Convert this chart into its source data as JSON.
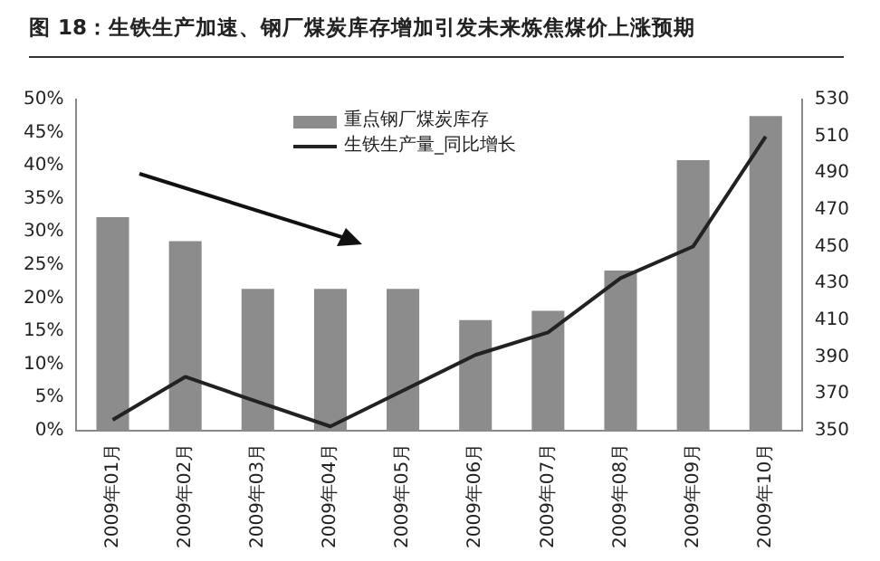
{
  "chart_data": {
    "type": "bar",
    "title": "图 18：生铁生产加速、钢厂煤炭库存增加引发未来炼焦煤价上涨预期",
    "categories": [
      "2009年01月",
      "2009年02月",
      "2009年03月",
      "2009年04月",
      "2009年05月",
      "2009年06月",
      "2009年07月",
      "2009年08月",
      "2009年09月",
      "2009年10月"
    ],
    "series": [
      {
        "name": "重点钢厂煤炭库存",
        "axis": "y2",
        "color": "#8c8c8c",
        "values": [
          466,
          453,
          427,
          427,
          427,
          410,
          415,
          437,
          497,
          521
        ]
      },
      {
        "name": "生铁生产量_同比增长",
        "type": "line",
        "color": "#222222",
        "values": [
          1.6,
          8.1,
          4.3,
          0.6,
          6.0,
          11.4,
          14.8,
          23.0,
          27.8,
          44.4
        ]
      }
    ],
    "ylim": [
      0,
      50
    ],
    "yticks": [
      {
        "value": 0,
        "label": "0%"
      },
      {
        "value": 5,
        "label": "5%"
      },
      {
        "value": 10,
        "label": "10%"
      },
      {
        "value": 15,
        "label": "15%"
      },
      {
        "value": 20,
        "label": "20%"
      },
      {
        "value": 25,
        "label": "25%"
      },
      {
        "value": 30,
        "label": "30%"
      },
      {
        "value": 35,
        "label": "35%"
      },
      {
        "value": 40,
        "label": "40%"
      },
      {
        "value": 45,
        "label": "45%"
      },
      {
        "value": 50,
        "label": "50%"
      }
    ],
    "y2lim": [
      350,
      530
    ],
    "y2ticks": [
      350,
      370,
      390,
      410,
      430,
      450,
      470,
      490,
      510,
      530
    ],
    "legend": "top",
    "grid": false,
    "marker": "none"
  }
}
